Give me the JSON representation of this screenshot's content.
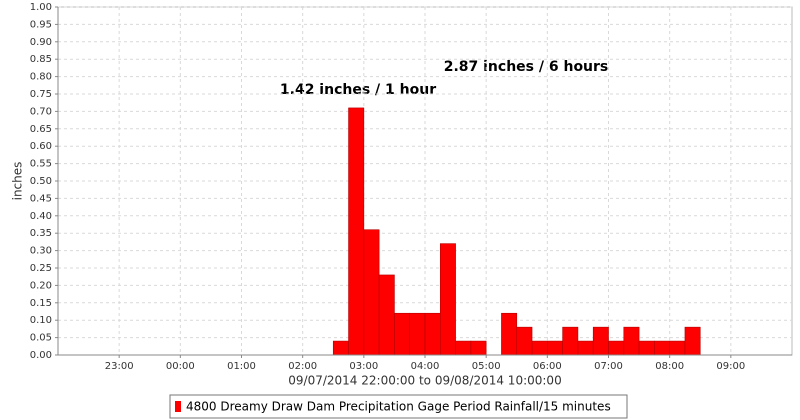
{
  "chart_data": {
    "type": "bar",
    "ylabel": "inches",
    "xlabel": "09/07/2014 22:00:00 to 09/08/2014 10:00:00",
    "annotations": [
      "1.42 inches / 1 hour",
      "2.87 inches / 6 hours"
    ],
    "xlim": [
      "22:00",
      "10:00"
    ],
    "xticks": [
      "23:00",
      "00:00",
      "01:00",
      "02:00",
      "03:00",
      "04:00",
      "05:00",
      "06:00",
      "07:00",
      "08:00",
      "09:00"
    ],
    "ylim": [
      0,
      1
    ],
    "yticks": [
      {
        "value": 0,
        "label": "0.00"
      },
      {
        "value": 0.05,
        "label": "0.05"
      },
      {
        "value": 0.1,
        "label": "0.10"
      },
      {
        "value": 0.15,
        "label": "0.15"
      },
      {
        "value": 0.2,
        "label": "0.20"
      },
      {
        "value": 0.25,
        "label": "0.25"
      },
      {
        "value": 0.3,
        "label": "0.30"
      },
      {
        "value": 0.35,
        "label": "0.35"
      },
      {
        "value": 0.4,
        "label": "0.40"
      },
      {
        "value": 0.45,
        "label": "0.45"
      },
      {
        "value": 0.5,
        "label": "0.50"
      },
      {
        "value": 0.55,
        "label": "0.55"
      },
      {
        "value": 0.6,
        "label": "0.60"
      },
      {
        "value": 0.65,
        "label": "0.65"
      },
      {
        "value": 0.7,
        "label": "0.70"
      },
      {
        "value": 0.75,
        "label": "0.75"
      },
      {
        "value": 0.8,
        "label": "0.80"
      },
      {
        "value": 0.85,
        "label": "0.85"
      },
      {
        "value": 0.9,
        "label": "0.90"
      },
      {
        "value": 0.95,
        "label": "0.95"
      },
      {
        "value": 1,
        "label": "1.00"
      }
    ],
    "grid": true,
    "series": [
      {
        "name": "4800 Dreamy Draw Dam Precipitation Gage Period Rainfall/15 minutes",
        "color": "#ff0000",
        "x": [
          "02:30",
          "02:45",
          "03:00",
          "03:15",
          "03:30",
          "03:45",
          "04:00",
          "04:15",
          "04:30",
          "04:45",
          "05:15",
          "05:30",
          "05:45",
          "06:00",
          "06:15",
          "06:30",
          "06:45",
          "07:00",
          "07:15",
          "07:30",
          "07:45",
          "08:00",
          "08:15"
        ],
        "values": [
          0.04,
          0.71,
          0.36,
          0.23,
          0.12,
          0.12,
          0.12,
          0.32,
          0.04,
          0.04,
          0.12,
          0.08,
          0.04,
          0.04,
          0.08,
          0.04,
          0.08,
          0.04,
          0.08,
          0.04,
          0.04,
          0.04,
          0.08
        ]
      }
    ]
  }
}
